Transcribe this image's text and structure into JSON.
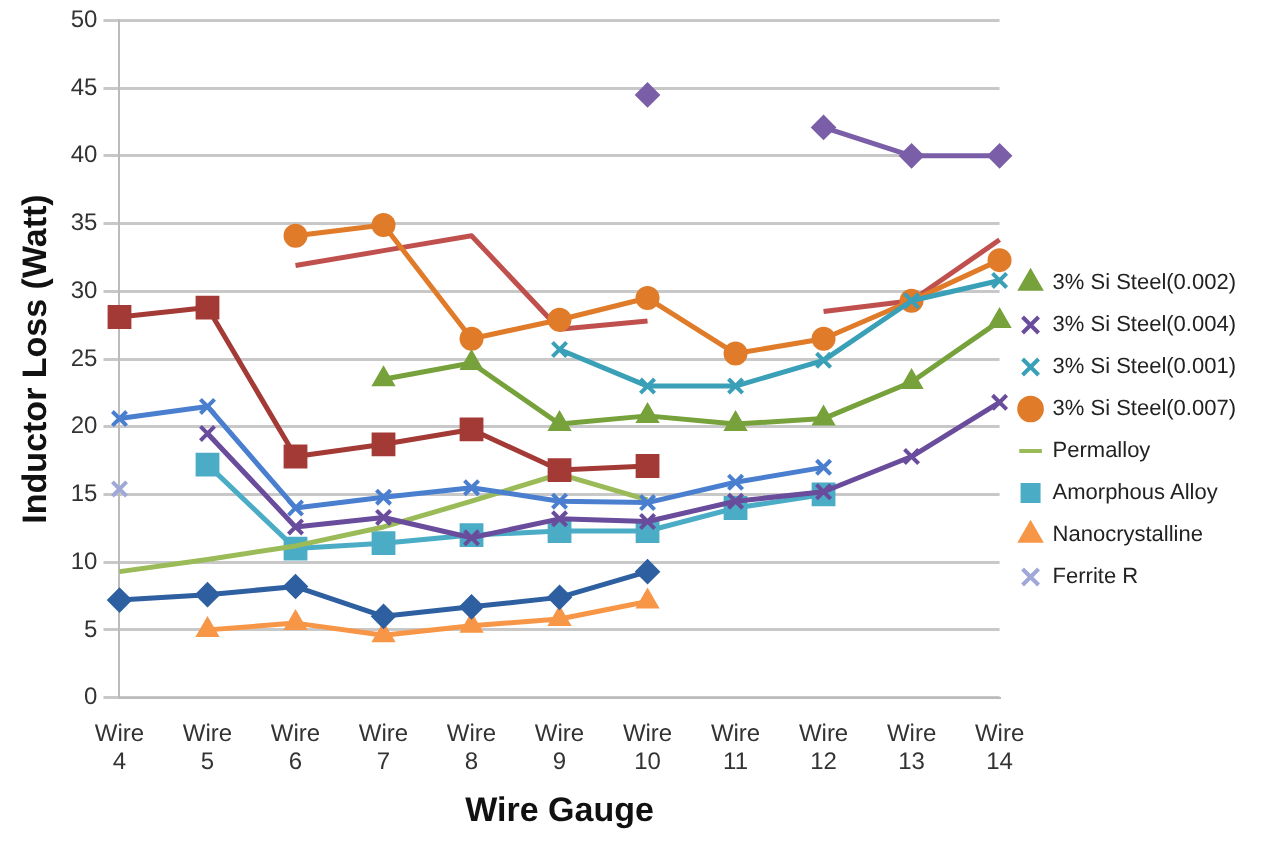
{
  "chart_data": {
    "type": "line",
    "xlabel": "Wire Gauge",
    "ylabel": "Inductor Loss (Watt)",
    "categories": [
      "Wire 4",
      "Wire 5",
      "Wire 6",
      "Wire 7",
      "Wire 8",
      "Wire 9",
      "Wire 10",
      "Wire 11",
      "Wire 12",
      "Wire 13",
      "Wire 14"
    ],
    "ylim": [
      0,
      50
    ],
    "yticks": [
      0,
      5,
      10,
      15,
      20,
      25,
      30,
      35,
      40,
      45,
      50
    ],
    "grid": "y",
    "legend": "right",
    "series": [
      {
        "color": "#2e5fa0",
        "marker": "diamond",
        "values": [
          7.2,
          7.6,
          8.2,
          6.0,
          6.7,
          7.4,
          9.3,
          null,
          null,
          null,
          null
        ]
      },
      {
        "color": "#a33a35",
        "marker": "square",
        "values": [
          28.1,
          28.8,
          17.8,
          18.7,
          19.8,
          16.8,
          17.1,
          null,
          null,
          null,
          null
        ]
      },
      {
        "name": "3% Si Steel(0.002)",
        "color": "#76a13b",
        "marker": "triangle",
        "values": [
          null,
          null,
          null,
          23.5,
          24.7,
          20.2,
          20.8,
          20.2,
          20.6,
          23.3,
          27.8
        ]
      },
      {
        "name": "3% Si Steel(0.004)",
        "color": "#6a4c9c",
        "marker": "cross",
        "values": [
          null,
          19.5,
          12.6,
          13.3,
          11.8,
          13.2,
          13.0,
          14.5,
          15.2,
          17.8,
          21.8
        ]
      },
      {
        "name": "3% Si Steel(0.001)",
        "color": "#3aa0b8",
        "marker": "cross",
        "values": [
          null,
          null,
          null,
          null,
          null,
          25.7,
          23.0,
          23.0,
          24.9,
          29.3,
          30.8
        ]
      },
      {
        "name": "3% Si Steel(0.007)",
        "color": "#e07b2a",
        "marker": "circle",
        "values": [
          null,
          null,
          34.1,
          34.9,
          26.5,
          27.9,
          29.5,
          25.4,
          26.5,
          29.3,
          32.3
        ]
      },
      {
        "color": "#4a7fd0",
        "marker": "cross",
        "values": [
          20.6,
          21.5,
          14.0,
          14.8,
          15.5,
          14.5,
          14.4,
          15.9,
          17.0,
          null,
          null
        ]
      },
      {
        "color": "#c0504d",
        "marker": "none",
        "values": [
          null,
          null,
          31.9,
          33.0,
          34.1,
          27.2,
          27.8,
          null,
          28.5,
          29.3,
          33.8
        ]
      },
      {
        "name": "Permalloy",
        "color": "#9bbb59",
        "marker": "none",
        "values": [
          9.3,
          10.2,
          11.2,
          12.6,
          14.5,
          16.5,
          14.6,
          null,
          null,
          null,
          null
        ]
      },
      {
        "color": "#7a5fa8",
        "marker": "diamond",
        "values": [
          null,
          null,
          null,
          null,
          null,
          null,
          44.5,
          null,
          42.1,
          40.0,
          40.0
        ]
      },
      {
        "name": "Amorphous Alloy",
        "color": "#4bacc6",
        "marker": "square",
        "values": [
          null,
          17.2,
          11.0,
          11.4,
          12.0,
          12.3,
          12.3,
          14.0,
          15.0,
          null,
          null
        ]
      },
      {
        "name": "Nanocrystalline",
        "color": "#f79646",
        "marker": "triangle",
        "values": [
          null,
          5.0,
          5.5,
          4.6,
          5.3,
          5.8,
          7.1,
          null,
          null,
          null,
          null
        ]
      },
      {
        "name": "Ferrite R",
        "color": "#a0a8d8",
        "marker": "cross",
        "values": [
          15.4,
          null,
          null,
          null,
          null,
          null,
          null,
          null,
          null,
          null,
          null
        ]
      }
    ]
  }
}
